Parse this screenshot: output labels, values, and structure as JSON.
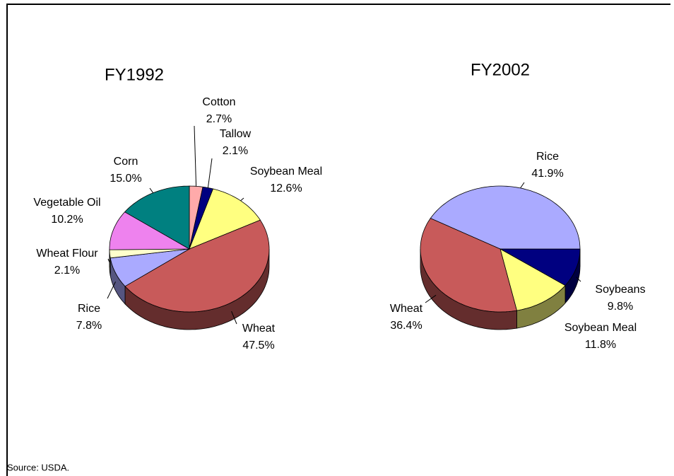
{
  "chart_data": [
    {
      "type": "pie",
      "title": "FY1992",
      "categories": [
        "Cotton",
        "Tallow",
        "Soybean Meal",
        "Wheat",
        "Rice",
        "Wheat Flour",
        "Vegetable Oil",
        "Corn"
      ],
      "values": [
        2.7,
        2.1,
        12.6,
        47.5,
        7.8,
        2.1,
        10.2,
        15.0
      ],
      "value_labels": [
        "2.7%",
        "2.1%",
        "12.6%",
        "47.5%",
        "7.8%",
        "2.1%",
        "10.2%",
        "15.0%"
      ],
      "colors": [
        "#ffaaaa",
        "#000080",
        "#ffff80",
        "#c85a5a",
        "#aaaaff",
        "#ffffcc",
        "#ee82ee",
        "#008080"
      ]
    },
    {
      "type": "pie",
      "title": "FY2002",
      "categories": [
        "Rice",
        "Soybeans",
        "Soybean Meal",
        "Wheat"
      ],
      "values": [
        41.9,
        9.8,
        11.8,
        36.4
      ],
      "value_labels": [
        "41.9%",
        "9.8%",
        "11.8%",
        "36.4%"
      ],
      "colors": [
        "#aaaaff",
        "#000080",
        "#ffff80",
        "#c85a5a"
      ]
    }
  ],
  "source": "Source: USDA."
}
